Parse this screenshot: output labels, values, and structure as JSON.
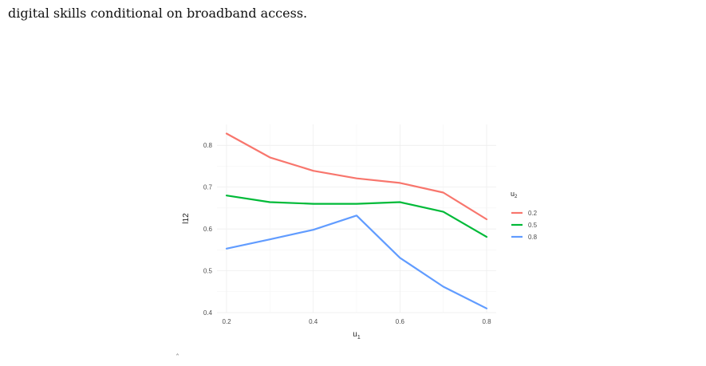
{
  "page": {
    "partial_text": "digital skills conditional on broadband access.",
    "caret_mark": "ˆ"
  },
  "chart_data": {
    "type": "line",
    "title": "",
    "xlabel": "u",
    "xlabel_subscript": "1",
    "ylabel": "l12",
    "xlim": [
      0.2,
      0.8
    ],
    "ylim": [
      0.4,
      0.85
    ],
    "xticks": [
      0.2,
      0.4,
      0.6,
      0.8
    ],
    "yticks": [
      0.4,
      0.5,
      0.6,
      0.7,
      0.8
    ],
    "grid": true,
    "legend_title": "u",
    "legend_title_subscript": "2",
    "legend_position": "right",
    "x": [
      0.2,
      0.3,
      0.4,
      0.5,
      0.6,
      0.7,
      0.8
    ],
    "series": [
      {
        "name": "0.2",
        "color": "#F8766D",
        "values": [
          0.828,
          0.771,
          0.739,
          0.721,
          0.71,
          0.687,
          0.623
        ]
      },
      {
        "name": "0.5",
        "color": "#00BA38",
        "values": [
          0.68,
          0.664,
          0.66,
          0.66,
          0.664,
          0.641,
          0.581
        ]
      },
      {
        "name": "0.8",
        "color": "#619CFF",
        "values": [
          0.553,
          0.575,
          0.598,
          0.632,
          0.531,
          0.462,
          0.41
        ]
      }
    ]
  }
}
